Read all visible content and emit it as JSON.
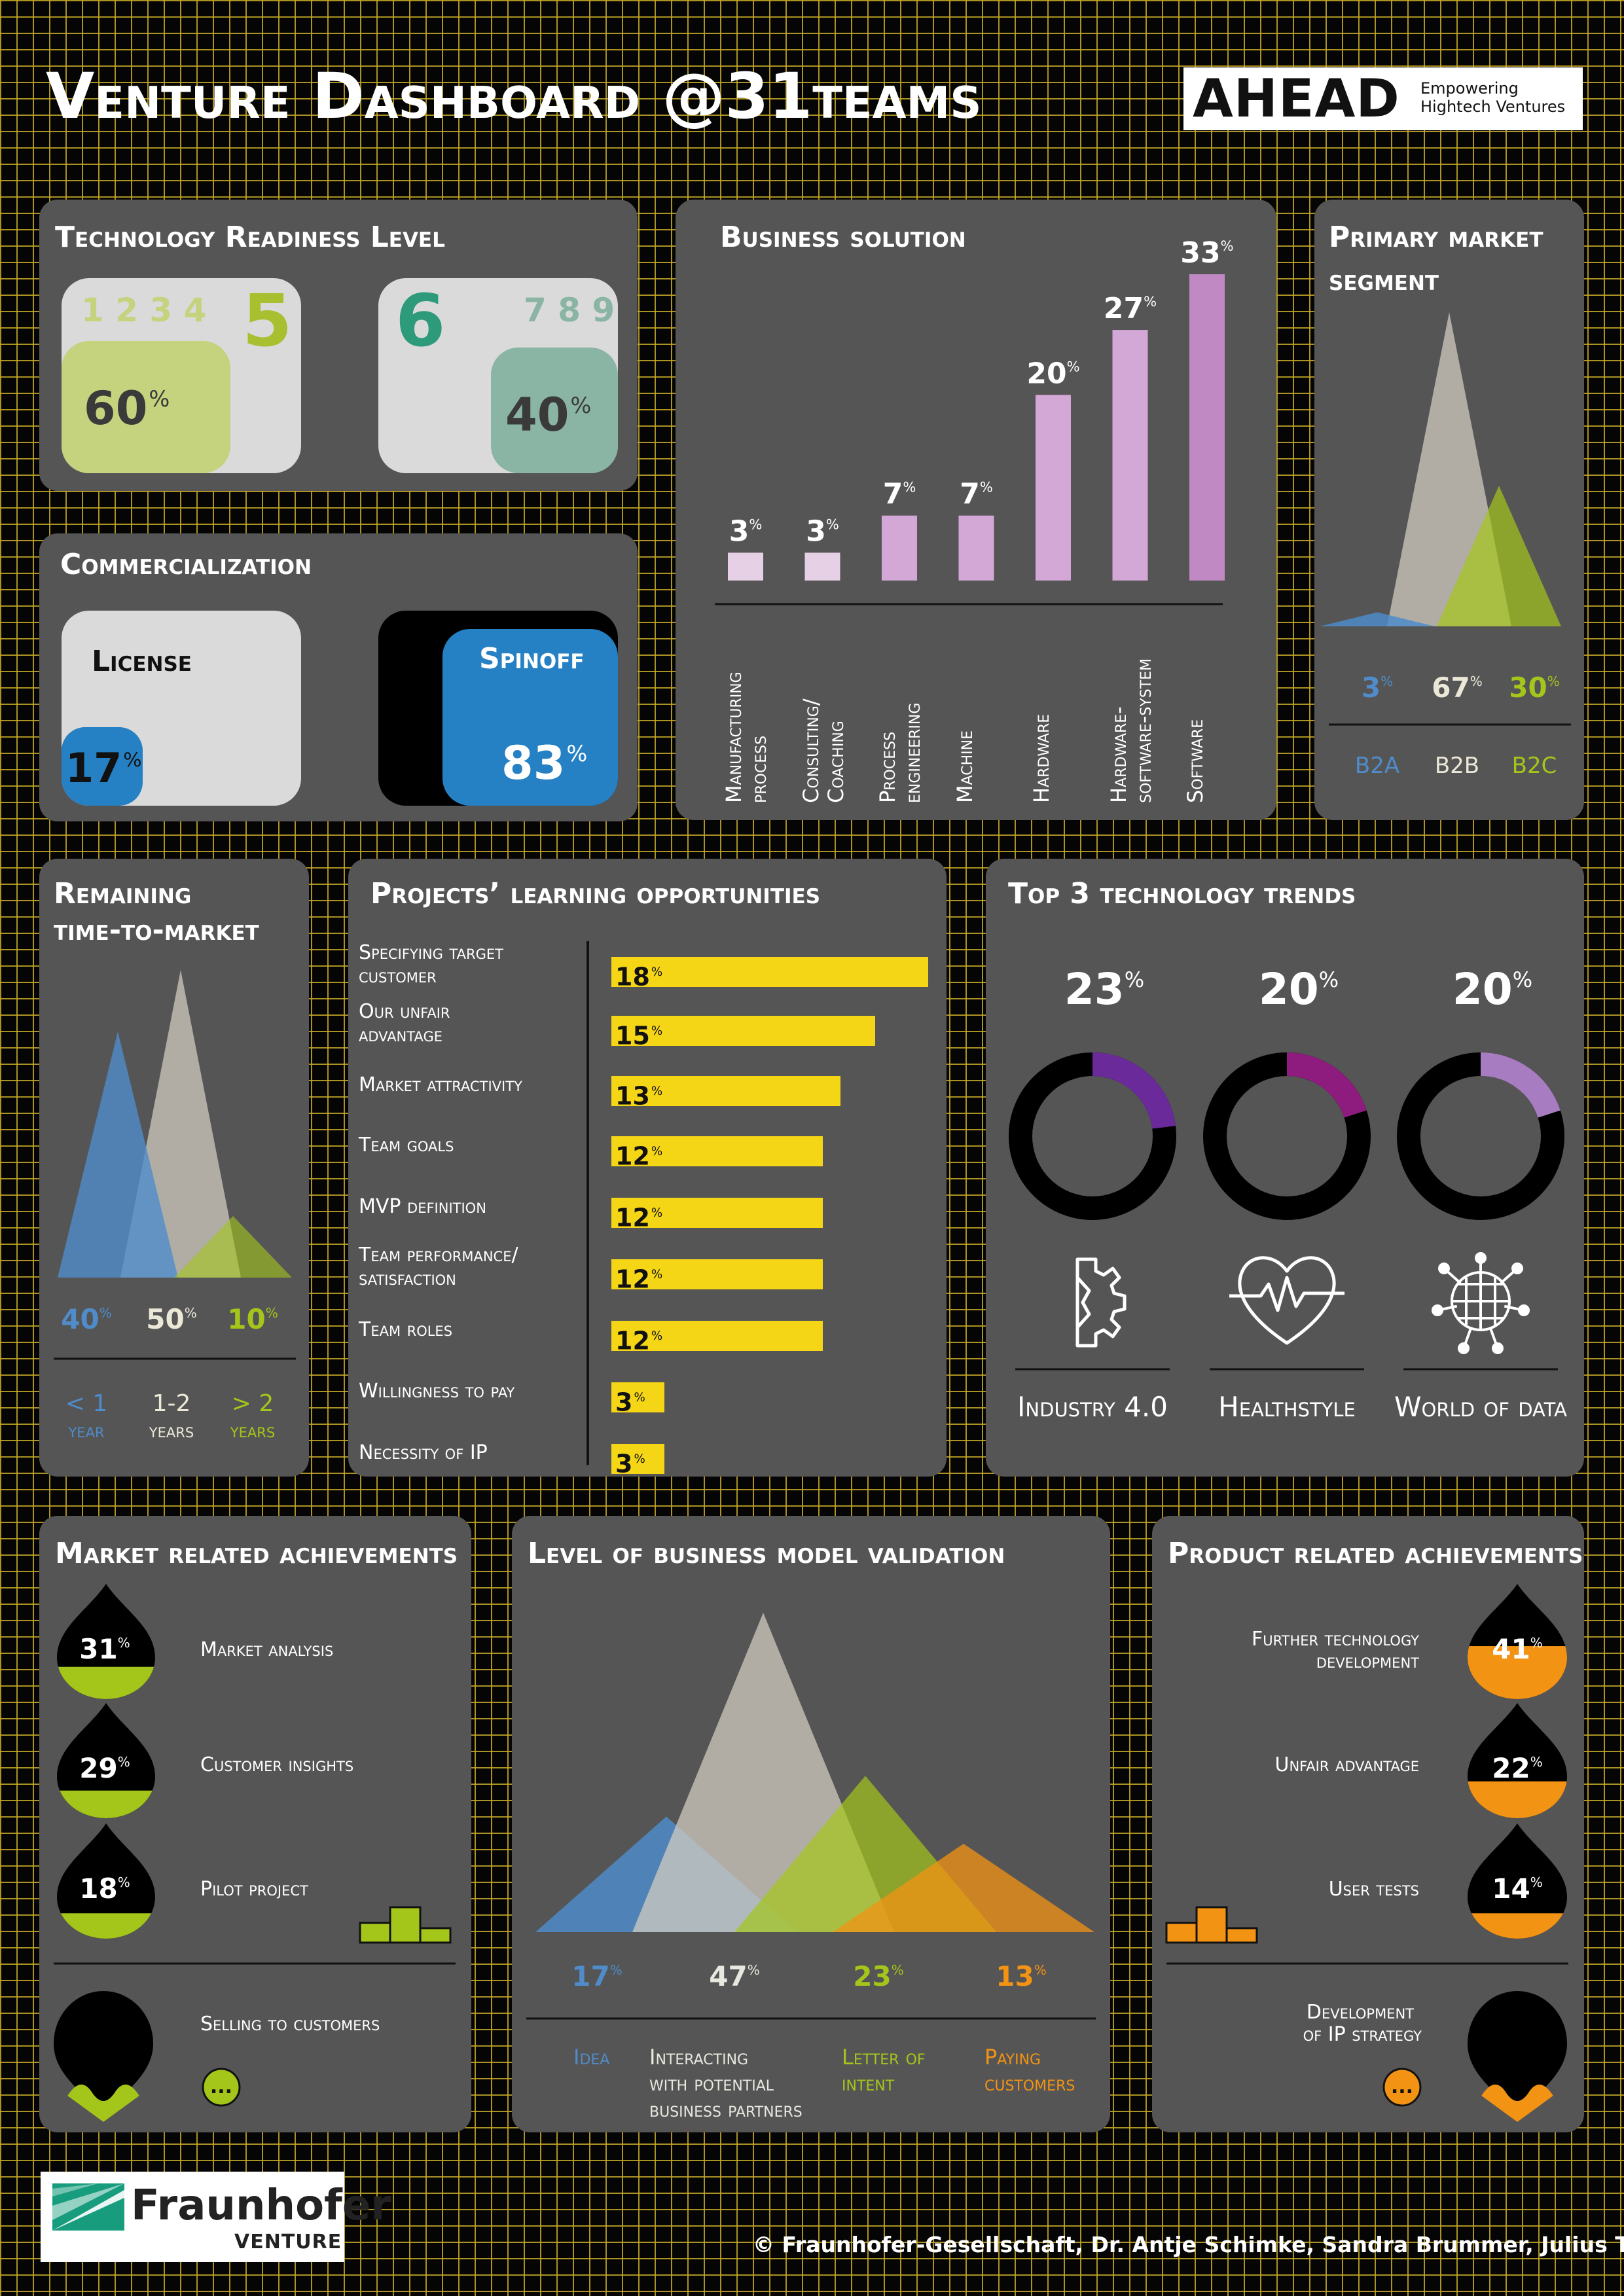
{
  "header": {
    "title_part1": "Venture Dashboard",
    "title_part2": "@31teams",
    "logo_text": "AHEAD",
    "logo_tagline_line1": "Empowering",
    "logo_tagline_line2": "Hightech Ventures"
  },
  "trl": {
    "title": "Technology Readiness Level",
    "low_levels": "1 2 3 4",
    "low_highlight": "5",
    "low_pct": "60",
    "high_highlight": "6",
    "high_levels": "7 8 9",
    "high_pct": "40",
    "colors": {
      "low": "#c5d27e",
      "low_text": "#a8c030",
      "high": "#8ab4a4",
      "high_text": "#2d9a7a"
    }
  },
  "commercialization": {
    "title": "Commercialization",
    "license_label": "License",
    "license_pct": "17",
    "spinoff_label": "Spinoff",
    "spinoff_pct": "83",
    "color": "#2581c4"
  },
  "business_solution": {
    "title": "Business solution",
    "labels": [
      [
        "Manufacturing",
        "process"
      ],
      [
        "Consulting/",
        "Coaching"
      ],
      [
        "Process",
        "engineering"
      ],
      [
        "Machine"
      ],
      [
        "Hardware"
      ],
      [
        "Hardware-",
        "software-system"
      ],
      [
        "Software"
      ]
    ]
  },
  "primary_market": {
    "title_line1": "Primary market",
    "title_line2": "segment",
    "values": [
      {
        "label": "B2A",
        "pct": "3"
      },
      {
        "label": "B2B",
        "pct": "67"
      },
      {
        "label": "B2C",
        "pct": "30"
      }
    ]
  },
  "time_to_market": {
    "title_line1": "Remaining",
    "title_line2": "time-to-market",
    "values": [
      {
        "pct": "40",
        "label_line1": "< 1",
        "label_line2": "year"
      },
      {
        "pct": "50",
        "label_line1": "1-2",
        "label_line2": "years"
      },
      {
        "pct": "10",
        "label_line1": "> 2",
        "label_line2": "years"
      }
    ]
  },
  "learning": {
    "title": "Projects’ learning opportunities",
    "items": [
      {
        "label_line1": "Specifying target",
        "label_line2": "customer",
        "pct": "18"
      },
      {
        "label_line1": "Our unfair",
        "label_line2": "advantage",
        "pct": "15"
      },
      {
        "label_line1": "Market attractivity",
        "label_line2": "",
        "pct": "13"
      },
      {
        "label_line1": "Team goals",
        "label_line2": "",
        "pct": "12"
      },
      {
        "label_line1": "MVP definition",
        "label_line2": "",
        "pct": "12"
      },
      {
        "label_line1": "Team performance/",
        "label_line2": "satisfaction",
        "pct": "12"
      },
      {
        "label_line1": "Team roles",
        "label_line2": "",
        "pct": "12"
      },
      {
        "label_line1": "Willingness to pay",
        "label_line2": "",
        "pct": "3"
      },
      {
        "label_line1": "Necessity of IP",
        "label_line2": "",
        "pct": "3"
      }
    ],
    "bar_color": "#f5d617"
  },
  "trends": {
    "title": "Top 3 technology trends",
    "items": [
      {
        "pct": "23",
        "label": "Industry 4.0",
        "icon": "gear-icon",
        "color": "#6a2a9a"
      },
      {
        "pct": "20",
        "label": "Healthstyle",
        "icon": "heart-icon",
        "color": "#8e1b7e"
      },
      {
        "pct": "20",
        "label": "World of data",
        "icon": "globe-network-icon",
        "color": "#a77cc0"
      }
    ]
  },
  "market_achievements": {
    "title": "Market related achievements",
    "items": [
      {
        "pct": "31",
        "label": "Market analysis"
      },
      {
        "pct": "29",
        "label": "Customer insights"
      },
      {
        "pct": "18",
        "label": "Pilot project"
      },
      {
        "pct": "",
        "label": "Selling to customers"
      }
    ],
    "more_symbol": "...",
    "color": "#a4c61a"
  },
  "bm_validation": {
    "title": "Level of business model validation",
    "items": [
      {
        "pct": "17",
        "label": [
          "Idea"
        ],
        "color": "#4f8cc9"
      },
      {
        "pct": "47",
        "label": [
          "Interacting",
          "with potential",
          "business partners"
        ],
        "color": "#e8e8e0"
      },
      {
        "pct": "23",
        "label": [
          "Letter of",
          "intent"
        ],
        "color": "#a4c61a"
      },
      {
        "pct": "13",
        "label": [
          "Paying",
          "customers"
        ],
        "color": "#f39314"
      }
    ]
  },
  "product_achievements": {
    "title": "Product related achievements",
    "items": [
      {
        "pct": "41",
        "label_line1": "Further technology",
        "label_line2": "development"
      },
      {
        "pct": "22",
        "label_line1": "Unfair advantage",
        "label_line2": ""
      },
      {
        "pct": "14",
        "label_line1": "User tests",
        "label_line2": ""
      },
      {
        "pct": "",
        "label_line1": "Development",
        "label_line2": "of IP strategy"
      }
    ],
    "more_symbol": "...",
    "color": "#f39314"
  },
  "footer": {
    "logo_name": "Fraunhofer",
    "logo_sub": "VENTURE",
    "copyright": "© Fraunhofer-Gesellschaft, Dr. Antje Schimke, Sandra Brummer, Julius Tutz"
  },
  "chart_data": [
    {
      "type": "bar",
      "title": "Business solution",
      "categories": [
        "Manufacturing process",
        "Consulting/ Coaching",
        "Process engineering",
        "Machine",
        "Hardware",
        "Hardware-software-system",
        "Software"
      ],
      "values": [
        3,
        3,
        7,
        7,
        20,
        27,
        33
      ],
      "unit": "%"
    },
    {
      "type": "area",
      "title": "Primary market segment",
      "categories": [
        "B2A",
        "B2B",
        "B2C"
      ],
      "values": [
        3,
        67,
        30
      ],
      "unit": "%"
    },
    {
      "type": "area",
      "title": "Remaining time-to-market",
      "categories": [
        "< 1 year",
        "1-2 years",
        "> 2 years"
      ],
      "values": [
        40,
        50,
        10
      ],
      "unit": "%"
    },
    {
      "type": "bar",
      "title": "Projects’ learning opportunities",
      "orientation": "horizontal",
      "categories": [
        "Specifying target customer",
        "Our unfair advantage",
        "Market attractivity",
        "Team goals",
        "MVP definition",
        "Team performance/ satisfaction",
        "Team roles",
        "Willingness to pay",
        "Necessity of IP"
      ],
      "values": [
        18,
        15,
        13,
        12,
        12,
        12,
        12,
        3,
        3
      ],
      "unit": "%"
    },
    {
      "type": "pie",
      "title": "Top 3 technology trends",
      "categories": [
        "Industry 4.0",
        "Healthstyle",
        "World of data"
      ],
      "values": [
        23,
        20,
        20
      ],
      "unit": "%"
    },
    {
      "type": "area",
      "title": "Level of business model validation",
      "categories": [
        "Idea",
        "Interacting with potential business partners",
        "Letter of intent",
        "Paying customers"
      ],
      "values": [
        17,
        47,
        23,
        13
      ],
      "unit": "%"
    },
    {
      "type": "bar",
      "title": "Technology Readiness Level",
      "categories": [
        "1-5",
        "6-9"
      ],
      "values": [
        60,
        40
      ],
      "unit": "%"
    },
    {
      "type": "bar",
      "title": "Commercialization",
      "categories": [
        "License",
        "Spinoff"
      ],
      "values": [
        17,
        83
      ],
      "unit": "%"
    },
    {
      "type": "bar",
      "title": "Market related achievements",
      "categories": [
        "Market analysis",
        "Customer insights",
        "Pilot project"
      ],
      "values": [
        31,
        29,
        18
      ],
      "unit": "%"
    },
    {
      "type": "bar",
      "title": "Product related achievements",
      "categories": [
        "Further technology development",
        "Unfair advantage",
        "User tests"
      ],
      "values": [
        41,
        22,
        14
      ],
      "unit": "%"
    }
  ]
}
